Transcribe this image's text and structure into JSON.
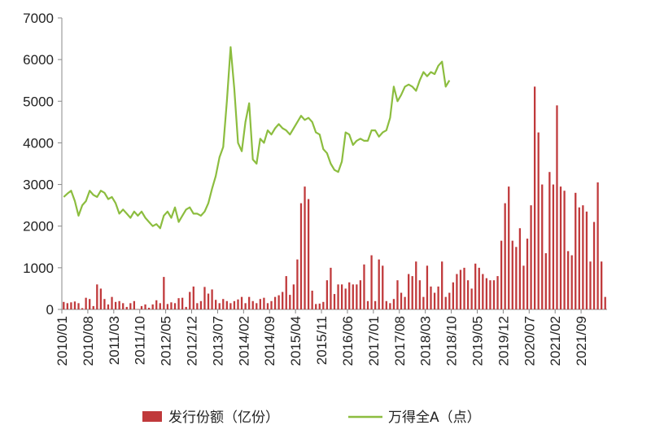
{
  "chart_data": {
    "type": "bar+line",
    "title": "",
    "xlabel": "",
    "ylabel": "",
    "ylim": [
      0,
      7000
    ],
    "yticks": [
      0,
      1000,
      2000,
      3000,
      4000,
      5000,
      6000,
      7000
    ],
    "x_tick_labels": [
      "2010/01",
      "2010/08",
      "2011/03",
      "2011/10",
      "2012/05",
      "2012/12",
      "2013/07",
      "2014/02",
      "2014/09",
      "2015/04",
      "2015/11",
      "2016/06",
      "2017/01",
      "2017/08",
      "2018/03",
      "2018/10",
      "2019/05",
      "2019/12",
      "2020/07",
      "2021/02",
      "2021/09"
    ],
    "grid": false,
    "legend_position": "bottom",
    "colors": {
      "bar": "#c0393b",
      "line": "#8cbd3f",
      "axis": "#888888"
    },
    "series": [
      {
        "name": "发行份额（亿份）",
        "type": "bar",
        "values": [
          180,
          150,
          170,
          190,
          150,
          30,
          280,
          250,
          80,
          600,
          500,
          250,
          120,
          300,
          180,
          200,
          150,
          60,
          150,
          200,
          10,
          80,
          120,
          40,
          120,
          220,
          150,
          780,
          130,
          170,
          150,
          270,
          280,
          60,
          420,
          550,
          150,
          200,
          540,
          380,
          480,
          230,
          150,
          250,
          200,
          150,
          200,
          240,
          300,
          150,
          300,
          200,
          150,
          250,
          280,
          150,
          200,
          300,
          340,
          420,
          800,
          350,
          600,
          1200,
          2550,
          2950,
          2650,
          450,
          130,
          140,
          180,
          700,
          1000,
          370,
          600,
          600,
          500,
          650,
          600,
          600,
          700,
          1080,
          200,
          1300,
          200,
          1200,
          1050,
          200,
          150,
          250,
          700,
          400,
          300,
          850,
          800,
          1150,
          700,
          300,
          1050,
          550,
          400,
          550,
          1150,
          300,
          400,
          650,
          850,
          950,
          1000,
          700,
          500,
          1100,
          1000,
          850,
          750,
          700,
          700,
          800,
          1650,
          2550,
          2950,
          1650,
          1500,
          1950,
          1050,
          1700,
          2500,
          5350,
          4250,
          3000,
          1350,
          3300,
          3000,
          4900,
          2950,
          2850,
          1400,
          1300,
          2800,
          2450,
          2500,
          2350,
          1150,
          2100,
          3050,
          1150,
          300
        ]
      },
      {
        "name": "万得全A（点）",
        "type": "line",
        "values": [
          2700,
          2780,
          2850,
          2600,
          2250,
          2500,
          2600,
          2850,
          2750,
          2700,
          2850,
          2800,
          2650,
          2700,
          2550,
          2300,
          2400,
          2300,
          2200,
          2350,
          2250,
          2350,
          2200,
          2100,
          2000,
          2050,
          1950,
          2250,
          2350,
          2200,
          2450,
          2100,
          2250,
          2400,
          2450,
          2300,
          2300,
          2250,
          2350,
          2550,
          2900,
          3200,
          3650,
          3900,
          5000,
          6300,
          5300,
          4000,
          3800,
          4500,
          4950,
          3600,
          3500,
          4100,
          4000,
          4300,
          4200,
          4350,
          4450,
          4350,
          4300,
          4200,
          4350,
          4500,
          4650,
          4550,
          4600,
          4500,
          4250,
          4200,
          3850,
          3750,
          3500,
          3350,
          3300,
          3550,
          4250,
          4200,
          3950,
          4050,
          4100,
          4050,
          4050,
          4300,
          4300,
          4150,
          4250,
          4300,
          4600,
          5350,
          5000,
          5150,
          5350,
          5400,
          5350,
          5250,
          5500,
          5700,
          5600,
          5700,
          5650,
          5850,
          5950,
          5350,
          5500
        ]
      }
    ]
  }
}
